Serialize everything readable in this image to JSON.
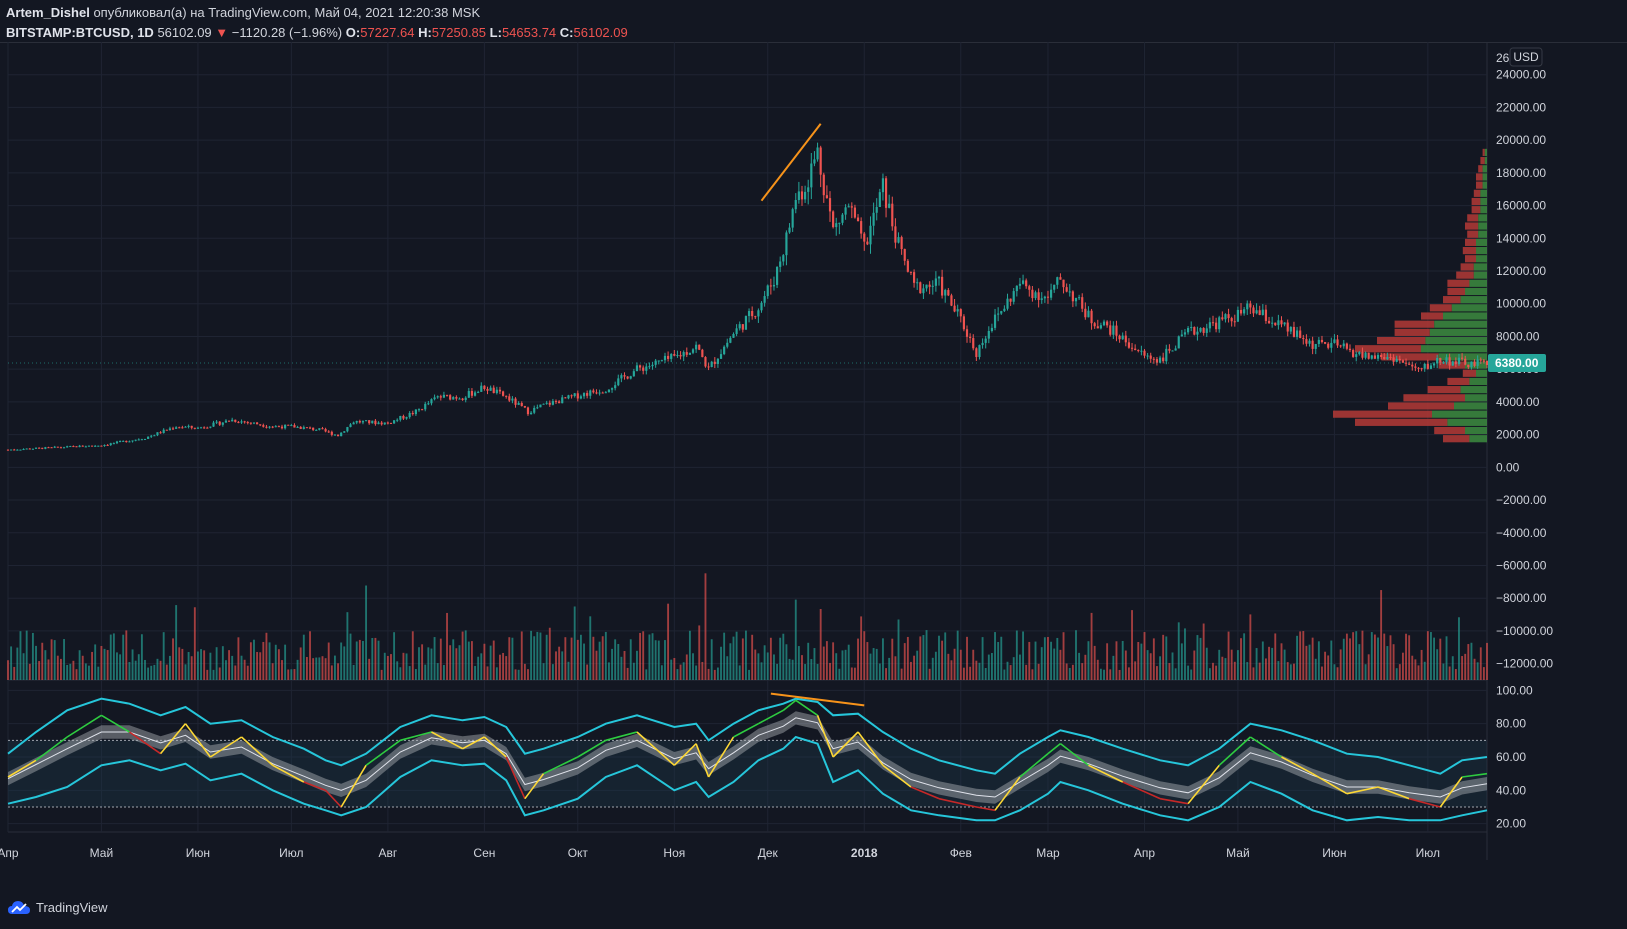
{
  "header": {
    "author": "Artem_Dishel",
    "published_text": "опубликовал(а) на TradingView.com, Май 04, 2021 12:20:38 MSK",
    "symbol": "BITSTAMP:BTCUSD, 1D",
    "last_price": "56102.09",
    "change_arrow": "▼",
    "change": "−1120.28 (−1.96%)",
    "o_label": "O:",
    "o_value": "57227.64",
    "h_label": "H:",
    "h_value": "57250.85",
    "l_label": "L:",
    "l_value": "54653.74",
    "c_label": "C:",
    "c_value": "56102.09"
  },
  "price_scale": {
    "currency": "USD",
    "current_price_label": "6380.00",
    "top_partial_label": "26"
  },
  "footer": {
    "brand": "TradingView"
  },
  "colors": {
    "background": "#131722",
    "grid": "#1f2433",
    "up": "#26a69a",
    "down": "#ef5350",
    "volume_profile_up": "#3d8c40",
    "volume_profile_down": "#b53a36",
    "trendline": "#f7931a",
    "rsi_band": "#26c6da",
    "rsi_up": "#2ecc40",
    "rsi_down": "#c62828",
    "rsi_neutral": "#fdd835"
  },
  "chart_data": [
    {
      "type": "candlestick",
      "title": "BITSTAMP:BTCUSD, 1D",
      "ylim": [
        -13000,
        26000
      ],
      "y_ticks": [
        24000,
        22000,
        20000,
        18000,
        16000,
        14000,
        12000,
        10000,
        8000,
        6000,
        4000,
        2000,
        0,
        -2000,
        -4000,
        -6000,
        -8000,
        -10000,
        -12000
      ],
      "y_tick_labels": [
        "24000.00",
        "22000.00",
        "20000.00",
        "18000.00",
        "16000.00",
        "14000.00",
        "12000.00",
        "10000.00",
        "8000.00",
        "6000.00",
        "4000.00",
        "2000.00",
        "0.00",
        "−2000.00",
        "−4000.00",
        "−6000.00",
        "−8000.00",
        "−10000.00",
        "−12000.00"
      ],
      "x_tick_labels": [
        "Апр",
        "Май",
        "Июн",
        "Июл",
        "Авг",
        "Сен",
        "Окт",
        "Ноя",
        "Дек",
        "2018",
        "Фев",
        "Мар",
        "Апр",
        "Май",
        "Июн",
        "Июл"
      ],
      "x_tick_dates": [
        "2017-04-01",
        "2017-05-01",
        "2017-06-01",
        "2017-07-01",
        "2017-08-01",
        "2017-09-01",
        "2017-10-01",
        "2017-11-01",
        "2017-12-01",
        "2018-01-01",
        "2018-02-01",
        "2018-03-01",
        "2018-04-01",
        "2018-05-01",
        "2018-06-01",
        "2018-07-01"
      ],
      "x_range": [
        "2017-04-01",
        "2018-07-20"
      ],
      "close_series": {
        "dates": [
          "2017-04-01",
          "2017-04-15",
          "2017-05-01",
          "2017-05-15",
          "2017-05-25",
          "2017-06-01",
          "2017-06-12",
          "2017-06-25",
          "2017-07-01",
          "2017-07-10",
          "2017-07-16",
          "2017-07-21",
          "2017-08-01",
          "2017-08-10",
          "2017-08-17",
          "2017-08-25",
          "2017-09-01",
          "2017-09-08",
          "2017-09-15",
          "2017-09-20",
          "2017-10-01",
          "2017-10-10",
          "2017-10-20",
          "2017-11-01",
          "2017-11-08",
          "2017-11-12",
          "2017-11-20",
          "2017-11-28",
          "2017-12-03",
          "2017-12-07",
          "2017-12-10",
          "2017-12-13",
          "2017-12-17",
          "2017-12-22",
          "2017-12-27",
          "2018-01-01",
          "2018-01-07",
          "2018-01-12",
          "2018-01-17",
          "2018-01-25",
          "2018-02-01",
          "2018-02-06",
          "2018-02-10",
          "2018-02-20",
          "2018-03-01",
          "2018-03-05",
          "2018-03-15",
          "2018-03-20",
          "2018-04-01",
          "2018-04-06",
          "2018-04-15",
          "2018-04-25",
          "2018-05-01",
          "2018-05-05",
          "2018-05-15",
          "2018-05-25",
          "2018-06-01",
          "2018-06-10",
          "2018-06-20",
          "2018-06-28",
          "2018-07-05",
          "2018-07-15",
          "2018-07-20"
        ],
        "values": [
          1080,
          1200,
          1350,
          1800,
          2500,
          2400,
          2900,
          2500,
          2500,
          2300,
          1950,
          2800,
          2700,
          3400,
          4300,
          4300,
          4900,
          4300,
          3400,
          3800,
          4400,
          4800,
          6000,
          6700,
          7400,
          6000,
          8200,
          9800,
          11500,
          14000,
          16500,
          17200,
          19300,
          14500,
          16000,
          13400,
          17100,
          13500,
          11000,
          11200,
          9000,
          7000,
          8500,
          11200,
          10300,
          11500,
          9000,
          8600,
          6800,
          6600,
          8200,
          8900,
          9300,
          9700,
          8600,
          7500,
          7500,
          6800,
          6700,
          5900,
          6600,
          6300,
          6380
        ]
      },
      "volume_profile": {
        "price_levels": [
          1500,
          2000,
          2500,
          3000,
          3500,
          4000,
          4500,
          5000,
          5500,
          6000,
          6500,
          7000,
          7500,
          8000,
          8500,
          9000,
          9500,
          10000,
          10500,
          11000,
          11500,
          12000,
          12500,
          13000,
          13500,
          14000,
          14500,
          15000,
          15500,
          16000,
          16500,
          17000,
          17500,
          18000,
          18500,
          19000
        ],
        "up_volume": [
          0.08,
          0.1,
          0.18,
          0.25,
          0.15,
          0.1,
          0.12,
          0.08,
          0.05,
          0.1,
          0.22,
          0.3,
          0.28,
          0.26,
          0.24,
          0.2,
          0.16,
          0.12,
          0.1,
          0.08,
          0.06,
          0.06,
          0.05,
          0.05,
          0.05,
          0.04,
          0.04,
          0.04,
          0.03,
          0.03,
          0.03,
          0.02,
          0.02,
          0.02,
          0.01,
          0.01
        ],
        "down_volume": [
          0.12,
          0.14,
          0.42,
          0.45,
          0.3,
          0.28,
          0.15,
          0.1,
          0.06,
          0.12,
          0.26,
          0.3,
          0.22,
          0.16,
          0.18,
          0.1,
          0.1,
          0.08,
          0.08,
          0.1,
          0.08,
          0.06,
          0.05,
          0.06,
          0.05,
          0.05,
          0.06,
          0.05,
          0.04,
          0.04,
          0.03,
          0.03,
          0.03,
          0.02,
          0.02,
          0.01
        ]
      },
      "volume_axis_note": "volume histogram drawn at bottom of price pane, relative heights only"
    },
    {
      "type": "line",
      "title": "",
      "ylim": [
        15,
        105
      ],
      "y_ticks": [
        100,
        80,
        60,
        40,
        20
      ],
      "y_tick_labels": [
        "100.00",
        "80.00",
        "60.00",
        "40.00",
        "20.00"
      ],
      "levels": [
        70,
        30
      ],
      "x_range": [
        "2017-04-01",
        "2018-07-20"
      ],
      "series": [
        {
          "role": "rsi",
          "dates": [
            "2017-04-01",
            "2017-04-10",
            "2017-04-20",
            "2017-05-01",
            "2017-05-10",
            "2017-05-20",
            "2017-05-28",
            "2017-06-05",
            "2017-06-15",
            "2017-06-25",
            "2017-07-05",
            "2017-07-12",
            "2017-07-17",
            "2017-07-25",
            "2017-08-05",
            "2017-08-15",
            "2017-08-25",
            "2017-09-01",
            "2017-09-08",
            "2017-09-14",
            "2017-09-20",
            "2017-10-01",
            "2017-10-10",
            "2017-10-20",
            "2017-11-01",
            "2017-11-08",
            "2017-11-12",
            "2017-11-20",
            "2017-11-28",
            "2017-12-06",
            "2017-12-10",
            "2017-12-17",
            "2017-12-22",
            "2017-12-30",
            "2018-01-07",
            "2018-01-16",
            "2018-01-25",
            "2018-02-06",
            "2018-02-12",
            "2018-02-20",
            "2018-03-01",
            "2018-03-05",
            "2018-03-14",
            "2018-03-25",
            "2018-04-06",
            "2018-04-15",
            "2018-04-25",
            "2018-05-05",
            "2018-05-15",
            "2018-05-25",
            "2018-06-05",
            "2018-06-15",
            "2018-06-25",
            "2018-07-05",
            "2018-07-12",
            "2018-07-20"
          ],
          "values": [
            48,
            58,
            72,
            85,
            75,
            62,
            80,
            60,
            72,
            55,
            45,
            40,
            30,
            55,
            70,
            75,
            65,
            72,
            60,
            35,
            50,
            60,
            70,
            75,
            55,
            68,
            48,
            72,
            80,
            88,
            94,
            85,
            60,
            75,
            55,
            42,
            35,
            30,
            28,
            48,
            62,
            68,
            55,
            45,
            35,
            32,
            55,
            72,
            60,
            50,
            38,
            42,
            35,
            30,
            48,
            50
          ]
        },
        {
          "role": "upper_band",
          "values": [
            62,
            75,
            88,
            95,
            92,
            85,
            90,
            80,
            82,
            72,
            65,
            58,
            55,
            62,
            78,
            85,
            82,
            84,
            78,
            62,
            65,
            72,
            80,
            85,
            78,
            80,
            70,
            80,
            88,
            92,
            95,
            93,
            85,
            86,
            75,
            65,
            58,
            52,
            50,
            62,
            72,
            76,
            72,
            65,
            58,
            55,
            65,
            80,
            76,
            70,
            62,
            60,
            55,
            50,
            58,
            60
          ]
        },
        {
          "role": "lower_band",
          "values": [
            32,
            36,
            42,
            55,
            58,
            52,
            56,
            46,
            50,
            40,
            32,
            28,
            25,
            30,
            48,
            58,
            55,
            56,
            46,
            25,
            28,
            35,
            48,
            55,
            40,
            45,
            36,
            45,
            58,
            65,
            72,
            68,
            45,
            52,
            38,
            28,
            25,
            22,
            22,
            28,
            38,
            45,
            40,
            32,
            25,
            22,
            30,
            45,
            38,
            28,
            22,
            24,
            22,
            22,
            25,
            28
          ]
        }
      ]
    }
  ]
}
